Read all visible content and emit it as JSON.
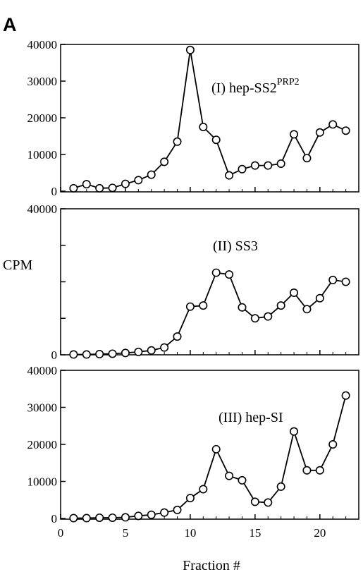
{
  "figure": {
    "letter": "A",
    "ylabel": "CPM",
    "xlabel": "Fraction #"
  },
  "chart_data": [
    {
      "type": "line",
      "title": "(I) hep-SS2",
      "title_superscript": "PRP2",
      "ylim": [
        0,
        40000
      ],
      "yticks": [
        0,
        10000,
        20000,
        30000,
        40000
      ],
      "ytick_labels": [
        "0",
        "10000",
        "20000",
        "30000",
        "40000"
      ],
      "xlim": [
        0,
        23
      ],
      "xticks": [
        0,
        5,
        10,
        15,
        20
      ],
      "x": [
        1,
        2,
        3,
        4,
        5,
        6,
        7,
        8,
        9,
        10,
        11,
        12,
        13,
        14,
        15,
        16,
        17,
        18,
        19,
        20,
        21,
        22
      ],
      "values": [
        800,
        1900,
        800,
        900,
        2000,
        3000,
        4500,
        8000,
        13500,
        38500,
        17500,
        14000,
        4300,
        6000,
        7000,
        7000,
        7500,
        15500,
        9000,
        16000,
        18200,
        16500
      ]
    },
    {
      "type": "line",
      "title": "(II) SS3",
      "title_superscript": "",
      "ylim": [
        0,
        40000
      ],
      "yticks": [
        0,
        10000,
        20000,
        30000,
        40000
      ],
      "ytick_labels": [
        "0",
        "",
        "",
        "",
        "40000"
      ],
      "xlim": [
        0,
        23
      ],
      "xticks": [
        0,
        5,
        10,
        15,
        20
      ],
      "x": [
        1,
        2,
        3,
        4,
        5,
        6,
        7,
        8,
        9,
        10,
        11,
        12,
        13,
        14,
        15,
        16,
        17,
        18,
        19,
        20,
        21,
        22
      ],
      "values": [
        100,
        100,
        200,
        300,
        500,
        800,
        1200,
        2000,
        5000,
        13200,
        13500,
        22500,
        22000,
        13000,
        10000,
        10500,
        13500,
        17000,
        12500,
        15500,
        20500,
        20000
      ]
    },
    {
      "type": "line",
      "title": "(III) hep-SI",
      "title_superscript": "",
      "ylim": [
        0,
        40000
      ],
      "yticks": [
        0,
        10000,
        20000,
        30000,
        40000
      ],
      "ytick_labels": [
        "0",
        "10000",
        "20000",
        "30000",
        "40000"
      ],
      "xlim": [
        0,
        23
      ],
      "xticks": [
        0,
        5,
        10,
        15,
        20
      ],
      "xtick_labels": [
        "0",
        "5",
        "10",
        "15",
        "20"
      ],
      "x": [
        1,
        2,
        3,
        4,
        5,
        6,
        7,
        8,
        9,
        10,
        11,
        12,
        13,
        14,
        15,
        16,
        17,
        18,
        19,
        20,
        21,
        22
      ],
      "values": [
        100,
        100,
        200,
        200,
        300,
        700,
        1000,
        1600,
        2300,
        5500,
        7900,
        18700,
        11500,
        10300,
        4500,
        4300,
        8600,
        23500,
        13000,
        13000,
        20000,
        33200
      ]
    }
  ]
}
